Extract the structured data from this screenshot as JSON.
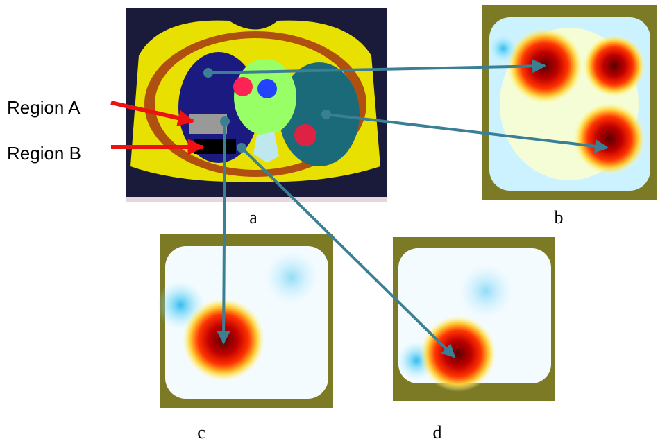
{
  "region_labels": [
    "Region A",
    "Region B"
  ],
  "panels": [
    {
      "label": "a"
    },
    {
      "label": "b"
    },
    {
      "label": "c"
    },
    {
      "label": "d"
    }
  ]
}
